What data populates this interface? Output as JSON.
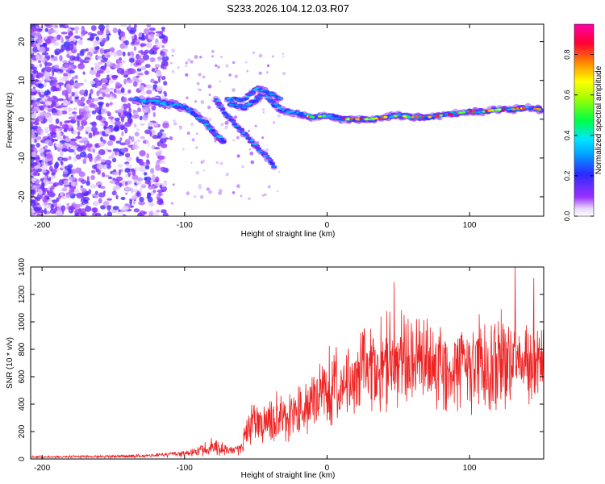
{
  "chart_data": [
    {
      "type": "heatmap",
      "title": "S233.2026.104.12.03.R07",
      "xlabel": "Height of straight line (km)",
      "ylabel": "Frequency (Hz)",
      "xlim": [
        -208,
        152
      ],
      "ylim": [
        -25,
        24.5
      ],
      "xticks": [
        -200,
        -100,
        0,
        100
      ],
      "yticks": [
        -20,
        -10,
        0,
        10,
        20
      ],
      "colorbar": {
        "label": "Normalized spectral amplitude",
        "range": [
          0,
          0.95
        ],
        "ticks": [
          "0.0",
          "0.2",
          "0.4",
          "0.6",
          "0.8"
        ],
        "tick_values": [
          0.0,
          0.2,
          0.4,
          0.6,
          0.8
        ],
        "colors": [
          "#ffffff",
          "#9b30ff",
          "#2a2aff",
          "#00e5ff",
          "#00ff44",
          "#ffff00",
          "#ff8800",
          "#ff0033",
          "#ff00aa"
        ]
      },
      "ridge": {
        "x": [
          -135,
          -120,
          -105,
          -95,
          -85,
          -78,
          -72,
          -68,
          -58,
          -50,
          -44,
          -38,
          -30,
          -20,
          -10,
          0,
          10,
          20,
          30,
          40,
          50,
          60,
          70,
          80,
          90,
          100,
          110,
          120,
          130,
          140,
          150
        ],
        "y": [
          5,
          4.5,
          3.5,
          2,
          -1,
          -4,
          -6,
          4,
          3,
          5,
          7,
          4,
          2,
          1.5,
          0.5,
          1,
          0,
          0,
          0,
          0.5,
          1,
          0.5,
          0.5,
          1,
          1.5,
          2,
          2,
          2.5,
          2.5,
          3,
          2.5
        ]
      },
      "branches": [
        {
          "x": [
            -78,
            -68,
            -60,
            -50,
            -44,
            -37
          ],
          "y": [
            5,
            0,
            -3,
            -7,
            -9,
            -12
          ]
        },
        {
          "x": [
            -70,
            -58,
            -50,
            -42,
            -32
          ],
          "y": [
            5,
            5,
            8,
            7,
            5
          ]
        }
      ]
    },
    {
      "type": "line",
      "xlabel": "Height of straight line (km)",
      "ylabel": "SNR (10 * v/v)",
      "xlim": [
        -208,
        152
      ],
      "ylim": [
        0,
        1400
      ],
      "xticks": [
        -200,
        -100,
        0,
        100
      ],
      "yticks": [
        0,
        200,
        400,
        600,
        800,
        1000,
        1200,
        1400
      ],
      "color": "#ee2222",
      "envelope": {
        "x": [
          -208,
          -150,
          -120,
          -100,
          -90,
          -80,
          -70,
          -62,
          -55,
          -50,
          -40,
          -30,
          -20,
          -10,
          0,
          10,
          20,
          30,
          40,
          50,
          60,
          80,
          100,
          120,
          140,
          152
        ],
        "mean": [
          15,
          18,
          25,
          40,
          60,
          90,
          70,
          60,
          230,
          260,
          280,
          290,
          330,
          420,
          500,
          560,
          620,
          660,
          680,
          690,
          700,
          690,
          690,
          690,
          680,
          700
        ],
        "amp": [
          10,
          12,
          18,
          30,
          50,
          80,
          45,
          40,
          150,
          200,
          210,
          220,
          260,
          300,
          320,
          330,
          340,
          380,
          420,
          420,
          420,
          400,
          400,
          420,
          420,
          380
        ]
      },
      "peaks": [
        {
          "x": 47,
          "y": 1290
        },
        {
          "x": 132,
          "y": 1400
        },
        {
          "x": 145,
          "y": 1320
        }
      ]
    }
  ]
}
